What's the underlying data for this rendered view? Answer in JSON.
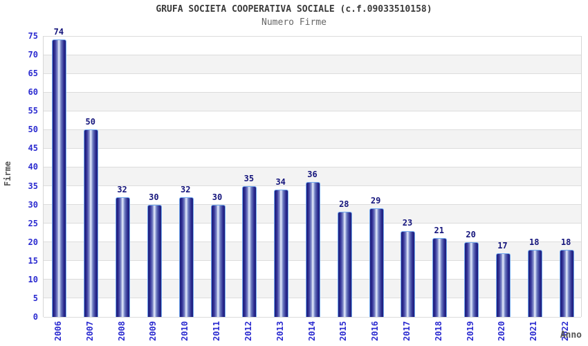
{
  "header": {
    "title": "GRUFA SOCIETA COOPERATIVA SOCIALE (c.f.09033510158)",
    "subtitle": "Numero Firme"
  },
  "chart_data": {
    "type": "bar",
    "title": "GRUFA SOCIETA COOPERATIVA SOCIALE (c.f.09033510158)",
    "subtitle": "Numero Firme",
    "xlabel": "Anno",
    "ylabel": "Firme",
    "categories": [
      "2006",
      "2007",
      "2008",
      "2009",
      "2010",
      "2011",
      "2012",
      "2013",
      "2014",
      "2015",
      "2016",
      "2017",
      "2018",
      "2019",
      "2020",
      "2021",
      "2022"
    ],
    "values": [
      74,
      50,
      32,
      30,
      32,
      30,
      35,
      34,
      36,
      28,
      29,
      23,
      21,
      20,
      17,
      18,
      18
    ],
    "ylim": [
      0,
      75
    ],
    "ytick_step": 5,
    "grid": "horizontal",
    "legend": "none",
    "layout": {
      "band_fill_alternating": true,
      "x_labels_rotated_vertical": true
    },
    "colors": {
      "bar_edge": "#72a9ee",
      "bar_dark": "#1f1f7e",
      "bar_highlight": "#e9eefb",
      "tick_label": "#2b2bd0",
      "value_label": "#15157c",
      "gridline": "#dcdcdc",
      "band_gray": "#f3f3f3",
      "band_white": "#ffffff",
      "title": "#3a3a3a",
      "subtitle": "#666666",
      "axis_title": "#555555"
    }
  }
}
